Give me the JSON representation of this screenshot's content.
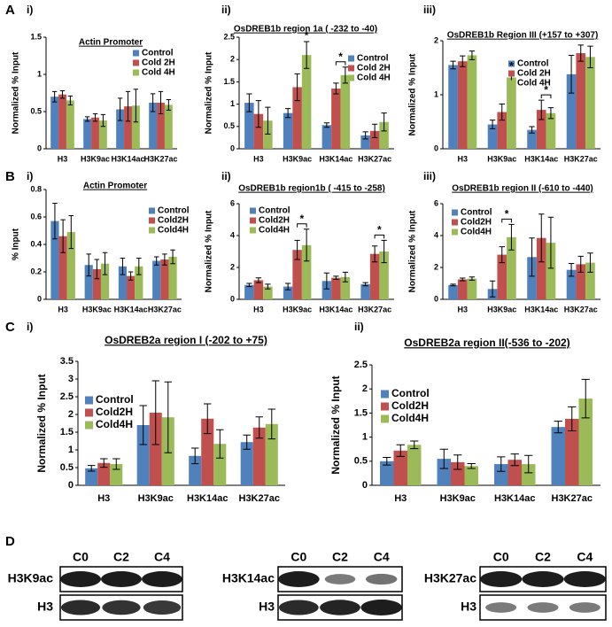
{
  "panel_letters": [
    "A",
    "B",
    "C",
    "D"
  ],
  "chart_data": [
    {
      "type": "bar",
      "sublabel": "i)",
      "title": "Actin Promoter",
      "ylabel": "Normalized % Input",
      "categories": [
        "H3",
        "H3K9ac",
        "H3K14ac",
        "H3K27ac"
      ],
      "series": [
        {
          "name": "Control",
          "color": "#4f81bd",
          "values": [
            0.7,
            0.4,
            0.53,
            0.62
          ],
          "errors": [
            0.07,
            0.03,
            0.15,
            0.12
          ]
        },
        {
          "name": "Cold 2H",
          "color": "#c0504d",
          "values": [
            0.73,
            0.42,
            0.57,
            0.62
          ],
          "errors": [
            0.05,
            0.05,
            0.2,
            0.15
          ]
        },
        {
          "name": "Cold 4H",
          "color": "#9bbb59",
          "values": [
            0.65,
            0.38,
            0.58,
            0.59
          ],
          "errors": [
            0.06,
            0.08,
            0.22,
            0.07
          ]
        }
      ],
      "ylim": [
        0,
        1.5
      ],
      "yticks": [
        0,
        0.5,
        1,
        1.5
      ],
      "annotations": []
    },
    {
      "type": "bar",
      "sublabel": "ii)",
      "title": "OsDREB1b region 1a ( -232 to -40)",
      "ylabel": "Normalized % Input",
      "categories": [
        "H3",
        "H3K9ac",
        "H3K14ac",
        "H3K27ac"
      ],
      "series": [
        {
          "name": "Control",
          "color": "#4f81bd",
          "values": [
            1.03,
            0.8,
            0.53,
            0.3
          ],
          "errors": [
            0.2,
            0.1,
            0.05,
            0.08
          ]
        },
        {
          "name": "Cold 2H",
          "color": "#c0504d",
          "values": [
            0.78,
            1.38,
            1.35,
            0.4
          ],
          "errors": [
            0.3,
            0.3,
            0.12,
            0.15
          ]
        },
        {
          "name": "Cold 4H",
          "color": "#9bbb59",
          "values": [
            0.63,
            2.1,
            1.65,
            0.6
          ],
          "errors": [
            0.3,
            0.3,
            0.18,
            0.2
          ]
        }
      ],
      "ylim": [
        0,
        2.5
      ],
      "yticks": [
        0,
        0.5,
        1,
        1.5,
        2,
        2.5
      ],
      "annotations": [
        {
          "text": "*",
          "category": "H3K9ac",
          "bracket": false
        },
        {
          "text": "*",
          "category": "H3K14ac",
          "bracket": true
        }
      ]
    },
    {
      "type": "bar",
      "sublabel": "iii)",
      "title": "OsDREB1b Region III (+157 to +307)",
      "ylabel": "Normalized % Input",
      "categories": [
        "H3",
        "H3K9ac",
        "H3K14ac",
        "H3K27ac"
      ],
      "series": [
        {
          "name": "Control",
          "color": "#4f81bd",
          "values": [
            1.55,
            0.45,
            0.35,
            1.38
          ],
          "errors": [
            0.07,
            0.08,
            0.06,
            0.35
          ]
        },
        {
          "name": "Cold 2H",
          "color": "#c0504d",
          "values": [
            1.62,
            0.68,
            0.72,
            1.77
          ],
          "errors": [
            0.1,
            0.15,
            0.18,
            0.15
          ]
        },
        {
          "name": "Cold 4H",
          "color": "#9bbb59",
          "values": [
            1.73,
            1.32,
            0.66,
            1.7
          ],
          "errors": [
            0.08,
            0.1,
            0.1,
            0.2
          ]
        }
      ],
      "ylim": [
        0,
        2
      ],
      "yticks": [
        0,
        1,
        2
      ],
      "annotations": [
        {
          "text": "*",
          "category": "H3K9ac",
          "bracket": false
        },
        {
          "text": "*",
          "category": "H3K14ac",
          "bracket": true
        }
      ]
    },
    {
      "type": "bar",
      "sublabel": "i)",
      "title": "Actin Promoter",
      "ylabel": "% Input",
      "categories": [
        "H3",
        "H3K9ac",
        "H3K14ac",
        "H3K27ac"
      ],
      "series": [
        {
          "name": "Control",
          "color": "#4f81bd",
          "values": [
            0.57,
            0.25,
            0.24,
            0.28
          ],
          "errors": [
            0.13,
            0.08,
            0.06,
            0.03
          ]
        },
        {
          "name": "Cold2H",
          "color": "#c0504d",
          "values": [
            0.46,
            0.22,
            0.17,
            0.29
          ],
          "errors": [
            0.12,
            0.07,
            0.03,
            0.04
          ]
        },
        {
          "name": "Cold4H",
          "color": "#9bbb59",
          "values": [
            0.49,
            0.26,
            0.24,
            0.31
          ],
          "errors": [
            0.12,
            0.08,
            0.06,
            0.05
          ]
        }
      ],
      "ylim": [
        0,
        0.8
      ],
      "yticks": [
        0,
        0.2,
        0.4,
        0.6,
        0.8
      ],
      "annotations": []
    },
    {
      "type": "bar",
      "sublabel": "ii)",
      "title": "OsDREB1b region1b ( -415 to -258)",
      "ylabel": "Normalized % Input",
      "categories": [
        "H3",
        "H3K9ac",
        "H3K14ac",
        "H3K27ac"
      ],
      "series": [
        {
          "name": "Control",
          "color": "#4f81bd",
          "values": [
            0.9,
            0.8,
            1.15,
            0.95
          ],
          "errors": [
            0.1,
            0.2,
            0.5,
            0.1
          ]
        },
        {
          "name": "Cold2H",
          "color": "#c0504d",
          "values": [
            1.2,
            3.1,
            1.35,
            2.85
          ],
          "errors": [
            0.15,
            0.6,
            0.1,
            0.5
          ]
        },
        {
          "name": "Cold4H",
          "color": "#9bbb59",
          "values": [
            0.8,
            3.4,
            1.4,
            3.0
          ],
          "errors": [
            0.15,
            1.0,
            0.3,
            0.7
          ]
        }
      ],
      "ylim": [
        0,
        6
      ],
      "yticks": [
        0,
        2,
        4,
        6
      ],
      "annotations": [
        {
          "text": "*",
          "category": "H3K9ac",
          "bracket": true
        },
        {
          "text": "*",
          "category": "H3K27ac",
          "bracket": true
        }
      ]
    },
    {
      "type": "bar",
      "sublabel": "iii)",
      "title": "OsDREB1b region II (-610 to -440)",
      "ylabel": "Normalized % Input",
      "categories": [
        "H3",
        "H3K9ac",
        "H3K14ac",
        "H3K27ac"
      ],
      "series": [
        {
          "name": "Control",
          "color": "#4f81bd",
          "values": [
            0.9,
            0.65,
            2.65,
            1.85
          ],
          "errors": [
            0.05,
            0.5,
            1.2,
            0.4
          ]
        },
        {
          "name": "Cold2H",
          "color": "#c0504d",
          "values": [
            1.25,
            2.8,
            3.85,
            2.2
          ],
          "errors": [
            0.08,
            0.5,
            1.5,
            0.5
          ]
        },
        {
          "name": "Cold4H",
          "color": "#9bbb59",
          "values": [
            1.3,
            3.9,
            3.55,
            2.3
          ],
          "errors": [
            0.1,
            0.8,
            1.6,
            0.6
          ]
        }
      ],
      "ylim": [
        0,
        6
      ],
      "yticks": [
        0,
        2,
        4,
        6
      ],
      "annotations": [
        {
          "text": "*",
          "category": "H3K9ac",
          "bracket": true
        }
      ]
    },
    {
      "type": "bar",
      "sublabel": "i)",
      "title": "OsDREB2a region I (-202 to +75)",
      "ylabel": "Normalized % Input",
      "categories": [
        "H3",
        "H3K9ac",
        "H3K14ac",
        "H3K27ac"
      ],
      "series": [
        {
          "name": "Control",
          "color": "#4f81bd",
          "values": [
            0.48,
            1.7,
            0.83,
            1.22
          ],
          "errors": [
            0.08,
            0.55,
            0.22,
            0.2
          ]
        },
        {
          "name": "Cold2H",
          "color": "#c0504d",
          "values": [
            0.63,
            2.05,
            1.88,
            1.63
          ],
          "errors": [
            0.12,
            0.9,
            0.42,
            0.3
          ]
        },
        {
          "name": "Cold4H",
          "color": "#9bbb59",
          "values": [
            0.6,
            1.92,
            1.17,
            1.73
          ],
          "errors": [
            0.15,
            1.0,
            0.4,
            0.42
          ]
        }
      ],
      "ylim": [
        0,
        3.5
      ],
      "yticks": [
        0,
        0.5,
        1,
        1.5,
        2,
        2.5,
        3,
        3.5
      ],
      "annotations": []
    },
    {
      "type": "bar",
      "sublabel": "ii)",
      "title": "OsDREB2a region II(-536 to -202)",
      "ylabel": "Normalized % Input",
      "categories": [
        "H3",
        "H3K9ac",
        "H3K14ac",
        "H3K27ac"
      ],
      "series": [
        {
          "name": "Control",
          "color": "#4f81bd",
          "values": [
            0.5,
            0.55,
            0.44,
            1.21
          ],
          "errors": [
            0.08,
            0.2,
            0.15,
            0.12
          ]
        },
        {
          "name": "Cold2H",
          "color": "#c0504d",
          "values": [
            0.72,
            0.48,
            0.53,
            1.38
          ],
          "errors": [
            0.12,
            0.15,
            0.12,
            0.25
          ]
        },
        {
          "name": "Cold4H",
          "color": "#9bbb59",
          "values": [
            0.84,
            0.4,
            0.44,
            1.8
          ],
          "errors": [
            0.08,
            0.05,
            0.18,
            0.4
          ]
        }
      ],
      "ylim": [
        0,
        2.5
      ],
      "yticks": [
        0,
        0.5,
        1,
        1.5,
        2,
        2.5
      ],
      "annotations": []
    }
  ],
  "blots": [
    {
      "lanes": [
        "C0",
        "C2",
        "C4"
      ],
      "rows": [
        "H3K9ac",
        "H3"
      ]
    },
    {
      "lanes": [
        "C0",
        "C2",
        "C4"
      ],
      "rows": [
        "H3K14ac",
        "H3"
      ]
    },
    {
      "lanes": [
        "C0",
        "C2",
        "C4"
      ],
      "rows": [
        "H3K27ac",
        "H3"
      ]
    }
  ]
}
